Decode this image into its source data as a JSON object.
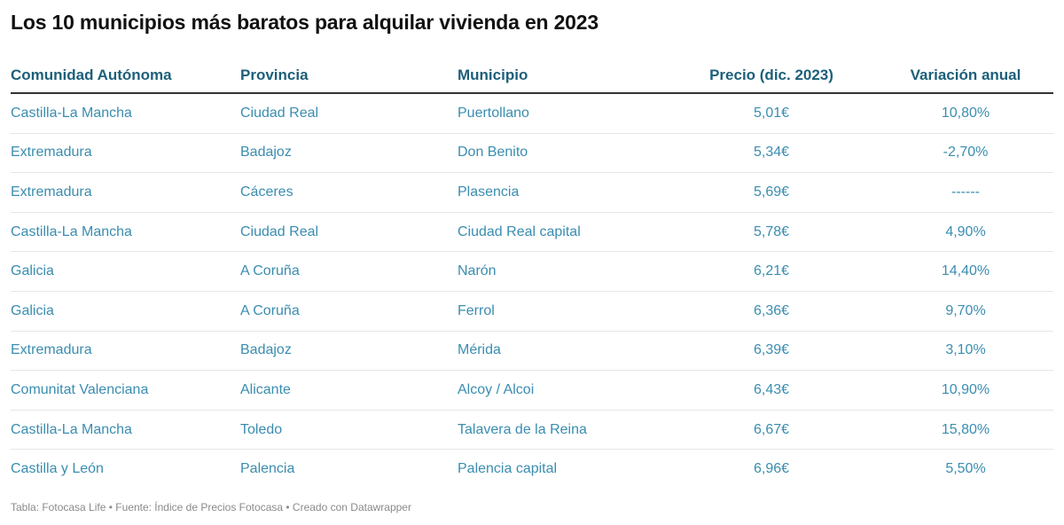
{
  "title": "Los 10 municipios más baratos para alquilar vivienda en 2023",
  "footer": "Tabla: Fotocasa Life • Fuente: Índice de Precios Fotocasa • Creado con Datawrapper",
  "colors": {
    "header_text": "#1d5f7a",
    "cell_text": "#3a8db0",
    "title": "#111111"
  },
  "chart_data": {
    "type": "table",
    "columns": [
      "Comunidad Autónoma",
      "Provincia",
      "Municipio",
      "Precio (dic. 2023)",
      "Variación anual"
    ],
    "rows": [
      [
        "Castilla-La Mancha",
        "Ciudad Real",
        "Puertollano",
        "5,01€",
        "10,80%"
      ],
      [
        "Extremadura",
        "Badajoz",
        "Don Benito",
        "5,34€",
        "-2,70%"
      ],
      [
        "Extremadura",
        "Cáceres",
        "Plasencia",
        "5,69€",
        "------"
      ],
      [
        "Castilla-La Mancha",
        "Ciudad Real",
        "Ciudad Real capital",
        "5,78€",
        "4,90%"
      ],
      [
        "Galicia",
        "A Coruña",
        "Narón",
        "6,21€",
        "14,40%"
      ],
      [
        "Galicia",
        "A Coruña",
        "Ferrol",
        "6,36€",
        "9,70%"
      ],
      [
        "Extremadura",
        "Badajoz",
        "Mérida",
        "6,39€",
        "3,10%"
      ],
      [
        "Comunitat Valenciana",
        "Alicante",
        "Alcoy / Alcoi",
        "6,43€",
        "10,90%"
      ],
      [
        "Castilla-La Mancha",
        "Toledo",
        "Talavera de la Reina",
        "6,67€",
        "15,80%"
      ],
      [
        "Castilla y León",
        "Palencia",
        "Palencia capital",
        "6,96€",
        "5,50%"
      ]
    ]
  }
}
